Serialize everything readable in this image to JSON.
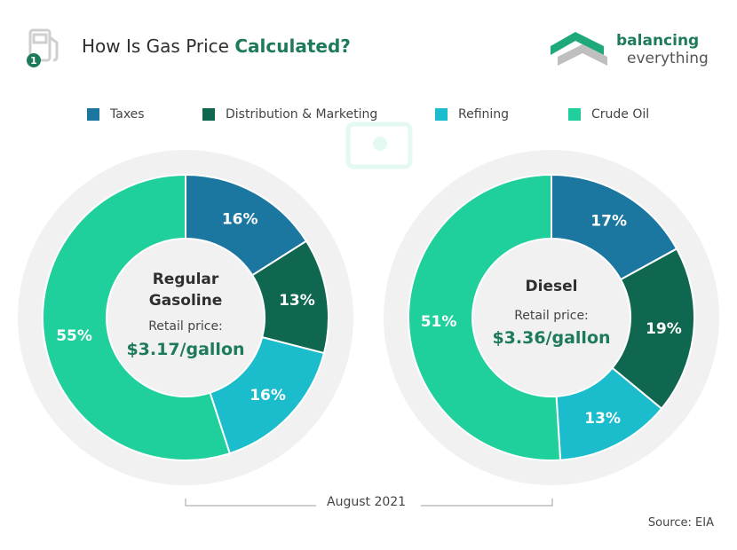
{
  "title": {
    "prefix": "How Is Gas Price ",
    "bold": "Calculated?"
  },
  "brand": {
    "line1": "balancing",
    "line2": "everything"
  },
  "colors": {
    "taxes": "#1b76a0",
    "distribution": "#0f6750",
    "refining": "#1bbccc",
    "crude": "#1fcf9c",
    "halo": "#f1f1f1",
    "accent": "#1e7a5c"
  },
  "legend": [
    {
      "label": "Taxes",
      "color": "#1b76a0"
    },
    {
      "label": "Distribution & Marketing",
      "color": "#0f6750"
    },
    {
      "label": "Refining",
      "color": "#1bbccc"
    },
    {
      "label": "Crude Oil",
      "color": "#1fcf9c"
    }
  ],
  "chart_data": [
    {
      "type": "pie",
      "center_title": [
        "Regular",
        "Gasoline"
      ],
      "center_label": "Retail price:",
      "center_price": "$3.17/gallon",
      "categories": [
        "Taxes",
        "Distribution & Marketing",
        "Refining",
        "Crude Oil"
      ],
      "values": [
        16,
        13,
        16,
        55
      ],
      "labels": [
        "16%",
        "13%",
        "16%",
        "55%"
      ]
    },
    {
      "type": "pie",
      "center_title": [
        "Diesel"
      ],
      "center_label": "Retail price:",
      "center_price": "$3.36/gallon",
      "categories": [
        "Taxes",
        "Distribution & Marketing",
        "Refining",
        "Crude Oil"
      ],
      "values": [
        17,
        19,
        13,
        51
      ],
      "labels": [
        "17%",
        "19%",
        "13%",
        "51%"
      ]
    }
  ],
  "footer": {
    "date": "August 2021",
    "source": "Source: EIA"
  }
}
